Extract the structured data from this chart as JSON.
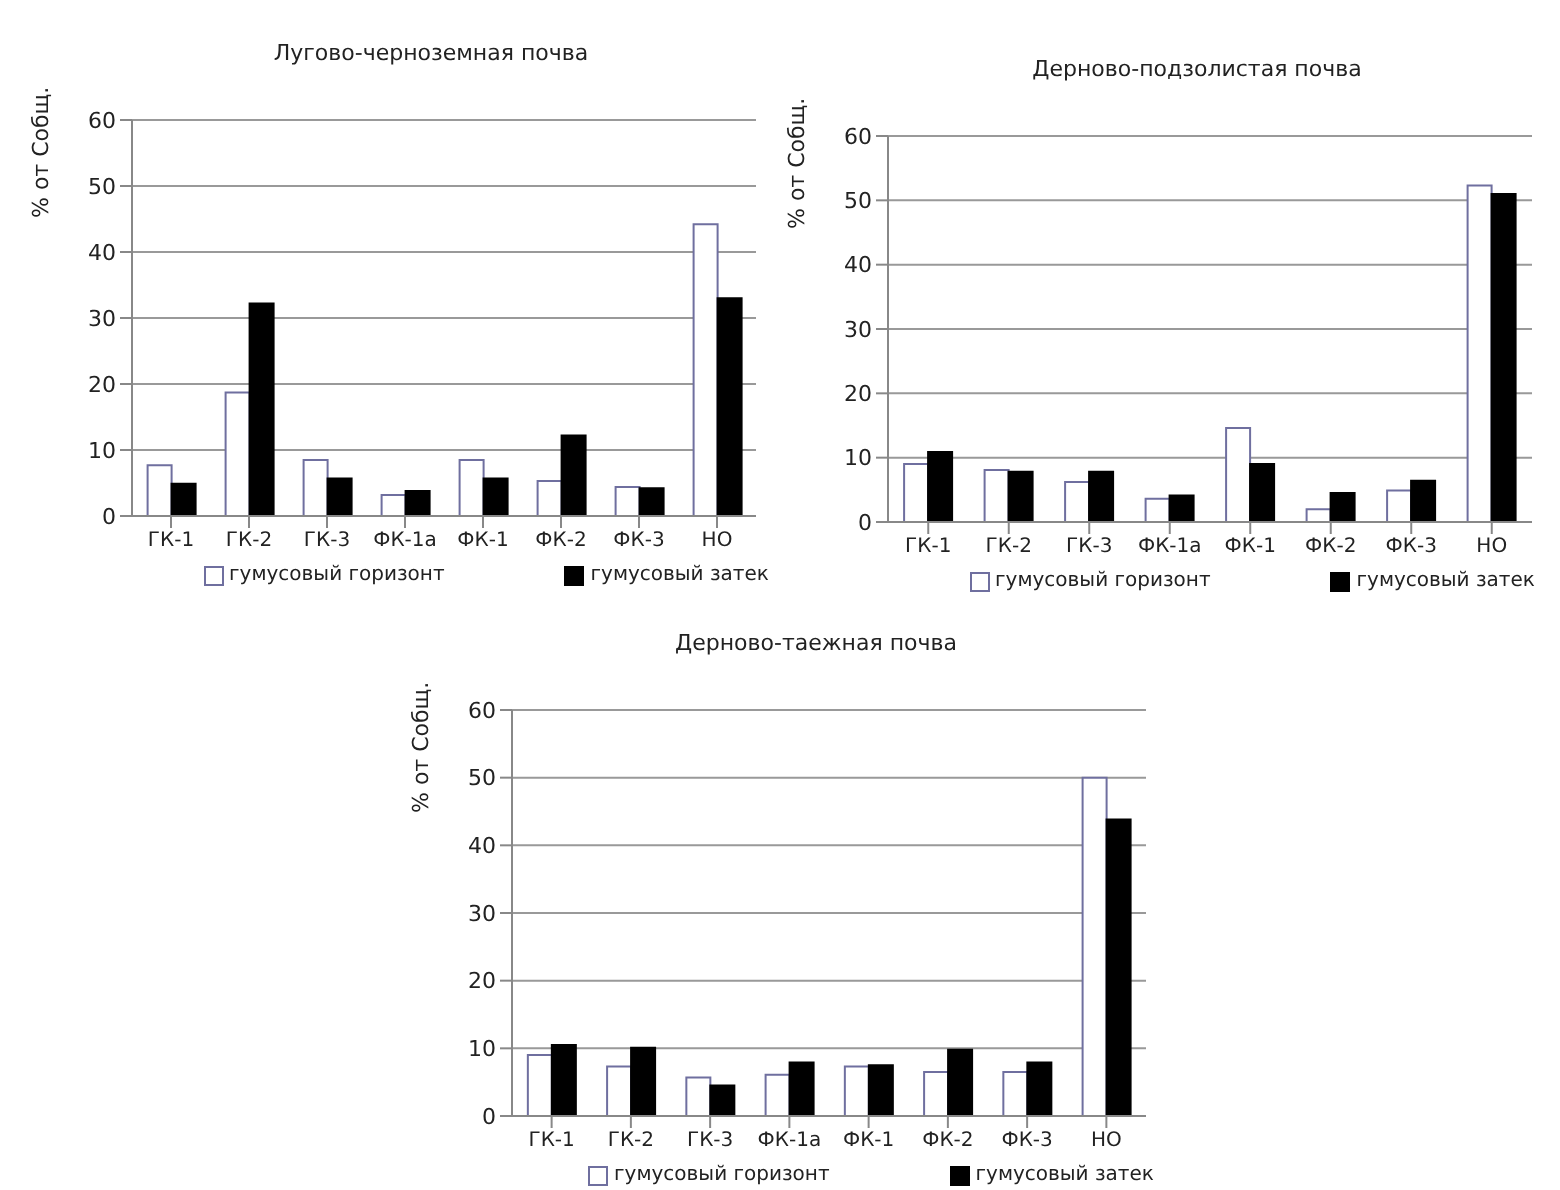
{
  "chart_data": [
    {
      "type": "bar",
      "title": "Лугово-черноземная почва",
      "ylabel": "% от Собщ.",
      "categories": [
        "ГК-1",
        "ГК-2",
        "ГК-3",
        "ФК-1а",
        "ФК-1",
        "ФК-2",
        "ФК-3",
        "НО"
      ],
      "series": [
        {
          "name": "гумусовый горизонт",
          "color": "#ffffff",
          "values": [
            7.7,
            18.7,
            8.5,
            3.2,
            8.5,
            5.3,
            4.4,
            44.2
          ]
        },
        {
          "name": "гумусовый затек",
          "color": "#000000",
          "values": [
            4.9,
            32.2,
            5.7,
            3.8,
            5.7,
            12.2,
            4.2,
            33
          ]
        }
      ],
      "ylim": [
        0,
        60
      ],
      "yticks": [
        0,
        10,
        20,
        30,
        40,
        50,
        60
      ],
      "grid": "y",
      "legend": "bottom"
    },
    {
      "type": "bar",
      "title": "Дерново-подзолистая почва",
      "ylabel": "% от Собщ.",
      "categories": [
        "ГК-1",
        "ГК-2",
        "ГК-3",
        "ФК-1а",
        "ФК-1",
        "ФК-2",
        "ФК-3",
        "НО"
      ],
      "series": [
        {
          "name": "гумусовый горизонт",
          "color": "#ffffff",
          "values": [
            9,
            8.1,
            6.2,
            3.6,
            14.6,
            2,
            4.9,
            52.3
          ]
        },
        {
          "name": "гумусовый затек",
          "color": "#000000",
          "values": [
            10.9,
            7.8,
            7.8,
            4.1,
            9,
            4.5,
            6.4,
            51
          ]
        }
      ],
      "ylim": [
        0,
        60
      ],
      "yticks": [
        0,
        10,
        20,
        30,
        40,
        50,
        60
      ],
      "grid": "y",
      "legend": "bottom"
    },
    {
      "type": "bar",
      "title": "Дерново-таежная почва",
      "ylabel": "% от Собщ.",
      "categories": [
        "ГК-1",
        "ГК-2",
        "ГК-3",
        "ФК-1а",
        "ФК-1",
        "ФК-2",
        "ФК-3",
        "НО"
      ],
      "series": [
        {
          "name": "гумусовый горизонт",
          "color": "#ffffff",
          "values": [
            9,
            7.3,
            5.7,
            6.1,
            7.3,
            6.5,
            6.5,
            50
          ]
        },
        {
          "name": "гумусовый затек",
          "color": "#000000",
          "values": [
            10.5,
            10.1,
            4.5,
            7.9,
            7.5,
            9.8,
            7.9,
            43.8
          ]
        }
      ],
      "ylim": [
        0,
        60
      ],
      "yticks": [
        0,
        10,
        20,
        30,
        40,
        50,
        60
      ],
      "grid": "y",
      "legend": "bottom"
    }
  ]
}
